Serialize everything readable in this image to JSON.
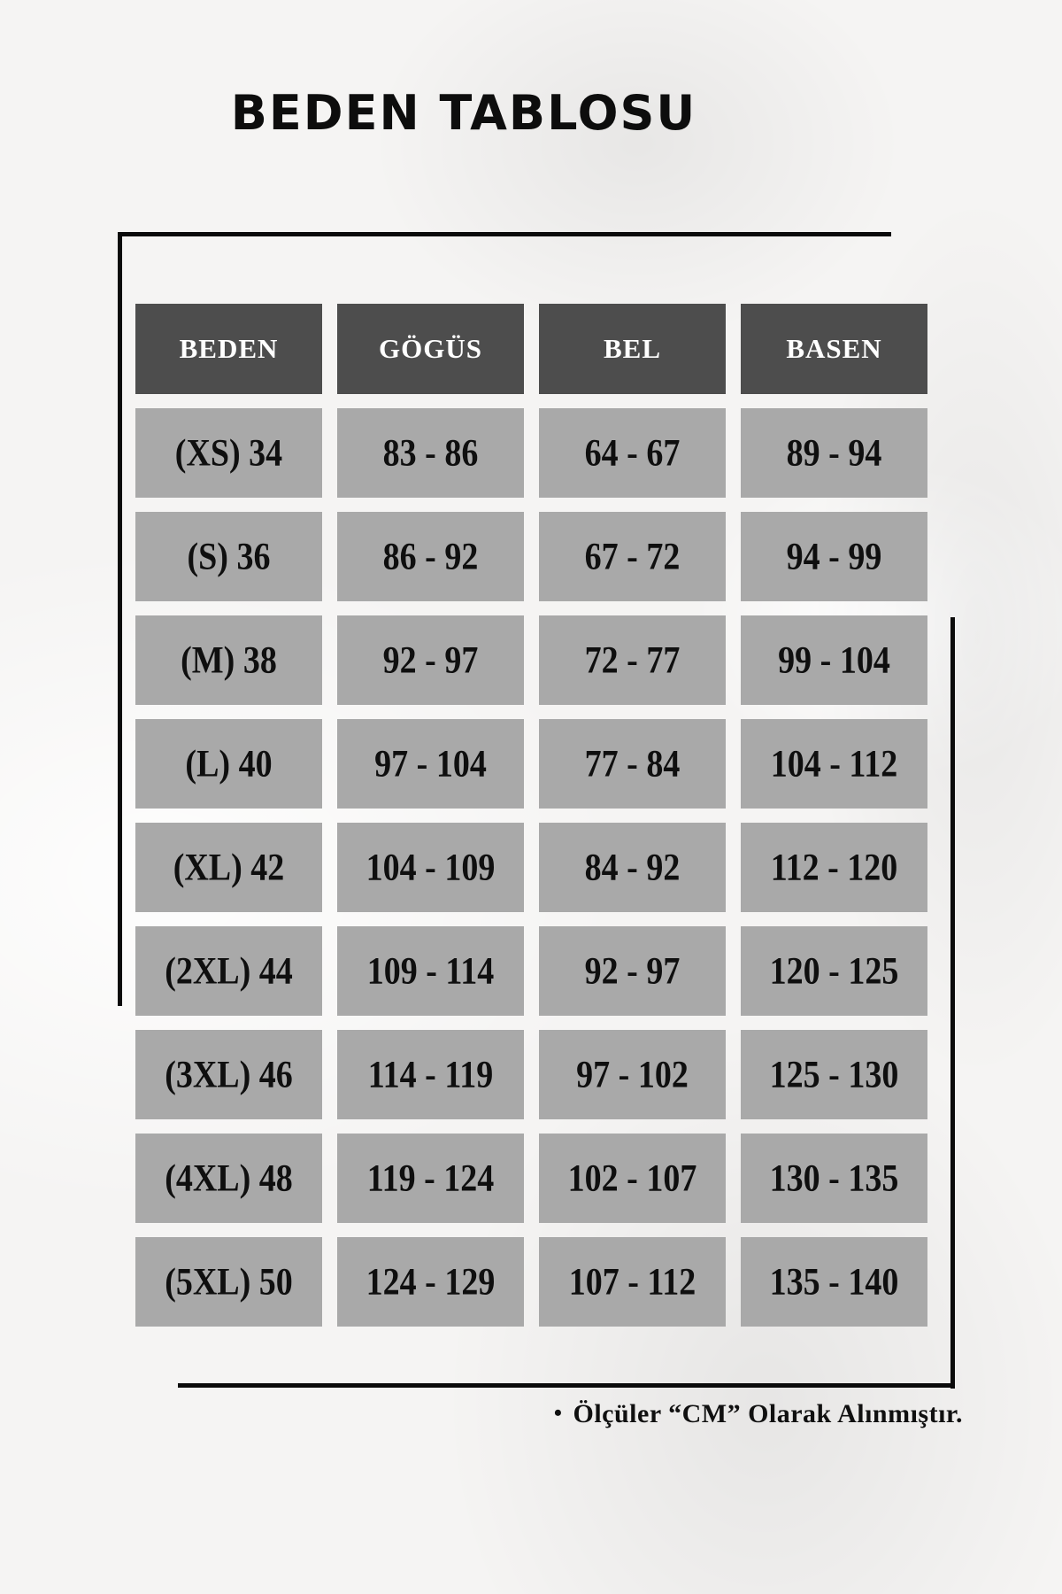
{
  "title": "BEDEN TABLOSU",
  "table": {
    "columns": [
      "BEDEN",
      "GÖGÜS",
      "BEL",
      "BASEN"
    ],
    "rows": [
      [
        "(XS) 34",
        "83 - 86",
        "64 - 67",
        "89 - 94"
      ],
      [
        "(S) 36",
        "86 - 92",
        "67 - 72",
        "94 - 99"
      ],
      [
        "(M) 38",
        "92 - 97",
        "72 - 77",
        "99 - 104"
      ],
      [
        "(L) 40",
        "97 - 104",
        "77 - 84",
        "104 - 112"
      ],
      [
        "(XL) 42",
        "104 - 109",
        "84 - 92",
        "112 - 120"
      ],
      [
        "(2XL) 44",
        "109 - 114",
        "92 - 97",
        "120 - 125"
      ],
      [
        "(3XL) 46",
        "114 - 119",
        "97 - 102",
        "125 - 130"
      ],
      [
        "(4XL) 48",
        "119 - 124",
        "102 - 107",
        "130 - 135"
      ],
      [
        "(5XL) 50",
        "124 - 129",
        "107 - 112",
        "135 - 140"
      ]
    ]
  },
  "note": {
    "bullet": "•",
    "text": "Ölçüler “CM” Olarak Alınmıştır."
  },
  "colors": {
    "header_bg": "#4d4d4d",
    "header_text": "#ffffff",
    "cell_bg": "#a9a9a9",
    "cell_text": "#0f0f0f",
    "line": "#0b0b0b",
    "background": "#f5f4f3"
  }
}
